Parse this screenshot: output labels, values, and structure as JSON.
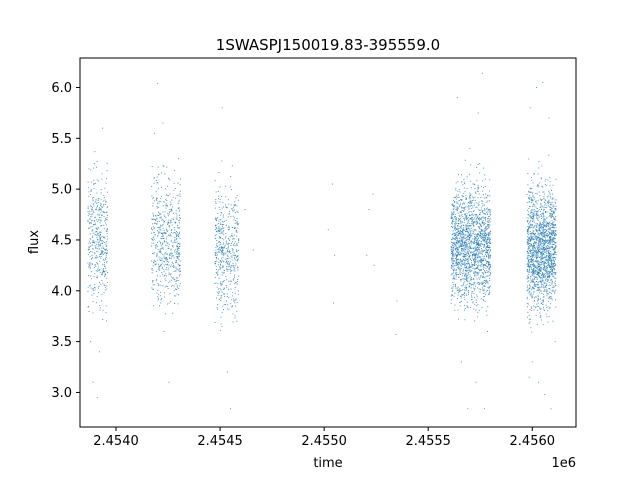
{
  "chart_data": {
    "type": "scatter",
    "title": "1SWASPJ150019.83-395559.0",
    "xlabel": "time",
    "ylabel": "flux",
    "x_offset_label": "1e6",
    "xlim": [
      2453827,
      2456210
    ],
    "ylim": [
      2.66,
      6.29
    ],
    "x_ticks": [
      2.454,
      2.4545,
      2.455,
      2.4555,
      2.456
    ],
    "x_tick_labels": [
      "2.4540",
      "2.4545",
      "2.4550",
      "2.4555",
      "2.4560"
    ],
    "y_ticks": [
      3.0,
      3.5,
      4.0,
      4.5,
      5.0,
      5.5,
      6.0
    ],
    "y_tick_labels": [
      "3.0",
      "3.5",
      "4.0",
      "4.5",
      "5.0",
      "5.5",
      "6.0"
    ],
    "grid": false,
    "marker_color": "#1f77b4",
    "series": [
      {
        "points": [
          [
            2453870,
            5.2
          ],
          [
            2453885,
            4.8
          ],
          [
            2453900,
            4.55
          ],
          [
            2453915,
            4.2
          ],
          [
            2453930,
            3.9
          ],
          [
            2453878,
            3.5
          ],
          [
            2453890,
            3.1
          ],
          [
            2453910,
            2.95
          ],
          [
            2453920,
            3.4
          ],
          [
            2453935,
            5.6
          ],
          [
            2454175,
            4.6
          ],
          [
            2454195,
            4.9
          ],
          [
            2454215,
            4.3
          ],
          [
            2454240,
            4.1
          ],
          [
            2454265,
            4.8
          ],
          [
            2454290,
            4.55
          ],
          [
            2454185,
            5.55
          ],
          [
            2454200,
            6.04
          ],
          [
            2454230,
            3.6
          ],
          [
            2454255,
            3.1
          ],
          [
            2454280,
            3.95
          ],
          [
            2454300,
            5.3
          ],
          [
            2454310,
            5.1
          ],
          [
            2454225,
            5.65
          ],
          [
            2454480,
            4.4
          ],
          [
            2454500,
            4.8
          ],
          [
            2454520,
            4.1
          ],
          [
            2454540,
            4.6
          ],
          [
            2454560,
            3.95
          ],
          [
            2454510,
            5.8
          ],
          [
            2454535,
            3.2
          ],
          [
            2454550,
            2.84
          ],
          [
            2454580,
            3.7
          ],
          [
            2454620,
            4.8
          ],
          [
            2454660,
            4.4
          ],
          [
            2455020,
            4.6
          ],
          [
            2455040,
            5.05
          ],
          [
            2455050,
            4.35
          ],
          [
            2455045,
            3.88
          ],
          [
            2455205,
            4.35
          ],
          [
            2455215,
            4.8
          ],
          [
            2455235,
            4.95
          ],
          [
            2455240,
            4.25
          ],
          [
            2455350,
            3.9
          ],
          [
            2455345,
            3.57
          ],
          [
            2455620,
            4.4
          ],
          [
            2455650,
            4.7
          ],
          [
            2455680,
            4.2
          ],
          [
            2455720,
            4.6
          ],
          [
            2455760,
            4.3
          ],
          [
            2455640,
            5.9
          ],
          [
            2455700,
            5.4
          ],
          [
            2455740,
            5.75
          ],
          [
            2455760,
            6.14
          ],
          [
            2455660,
            3.3
          ],
          [
            2455690,
            2.84
          ],
          [
            2455730,
            3.1
          ],
          [
            2455770,
            2.84
          ],
          [
            2455785,
            3.6
          ],
          [
            2455795,
            4.8
          ],
          [
            2455980,
            4.5
          ],
          [
            2456010,
            4.8
          ],
          [
            2456040,
            4.2
          ],
          [
            2456070,
            4.6
          ],
          [
            2456100,
            4.3
          ],
          [
            2455990,
            5.8
          ],
          [
            2456020,
            6.0
          ],
          [
            2456050,
            6.05
          ],
          [
            2456080,
            5.7
          ],
          [
            2456000,
            3.3
          ],
          [
            2456030,
            3.1
          ],
          [
            2456060,
            2.98
          ],
          [
            2456090,
            2.84
          ],
          [
            2456110,
            3.5
          ],
          [
            2455985,
            3.15
          ]
        ]
      }
    ],
    "clusters": [
      {
        "x_start": 2453865,
        "x_end": 2453960,
        "center": 4.52,
        "spread": 0.32,
        "count": 420
      },
      {
        "x_start": 2454170,
        "x_end": 2454310,
        "center": 4.48,
        "spread": 0.3,
        "count": 560
      },
      {
        "x_start": 2454475,
        "x_end": 2454590,
        "center": 4.4,
        "spread": 0.3,
        "count": 480
      },
      {
        "x_start": 2455610,
        "x_end": 2455800,
        "center": 4.45,
        "spread": 0.28,
        "count": 1700
      },
      {
        "x_start": 2455975,
        "x_end": 2456115,
        "center": 4.42,
        "spread": 0.3,
        "count": 1600
      }
    ]
  }
}
